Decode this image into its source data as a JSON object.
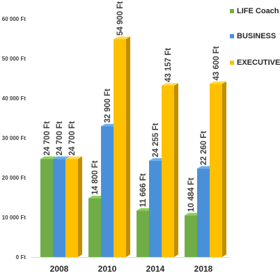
{
  "chart_data": {
    "type": "bar",
    "categories": [
      "2008",
      "2010",
      "2014",
      "2018"
    ],
    "series": [
      {
        "name": "LIFE Coach",
        "values": [
          24700,
          14800,
          11666,
          10484
        ],
        "labels": [
          "24 700 Ft",
          "14 800 Ft",
          "11 666 Ft",
          "10 484 Ft"
        ],
        "color": "#70ad47",
        "color_light": "#8fcf5e",
        "color_dark": "#4f7f30"
      },
      {
        "name": "BUSINESS",
        "values": [
          24700,
          32900,
          24255,
          22260
        ],
        "labels": [
          "24 700 Ft",
          "32 900 Ft",
          "24 255 Ft",
          "22 260 Ft"
        ],
        "color": "#4a90d9",
        "color_light": "#6aaef0",
        "color_dark": "#2f6aab"
      },
      {
        "name": "EXECUTIVE",
        "values": [
          24700,
          54900,
          43157,
          43600
        ],
        "labels": [
          "24 700 Ft",
          "54 900 Ft",
          "43 157 Ft",
          "43 600 Ft"
        ],
        "color": "#ffc000",
        "color_light": "#ffd84d",
        "color_dark": "#c08f00"
      }
    ],
    "y_ticks": [
      {
        "value": 0,
        "label": "0 Ft"
      },
      {
        "value": 10000,
        "label": "10 000 Ft"
      },
      {
        "value": 20000,
        "label": "20 000 Ft"
      },
      {
        "value": 30000,
        "label": "30 000 Ft"
      },
      {
        "value": 40000,
        "label": "40 000 Ft"
      },
      {
        "value": 50000,
        "label": "50 000 Ft"
      },
      {
        "value": 60000,
        "label": "60 000 Ft"
      }
    ],
    "ylim": [
      0,
      60000
    ],
    "title": "",
    "xlabel": "",
    "ylabel": "",
    "grid": false,
    "legend_position": "top-right",
    "data_labels": "rotated-vertical"
  }
}
